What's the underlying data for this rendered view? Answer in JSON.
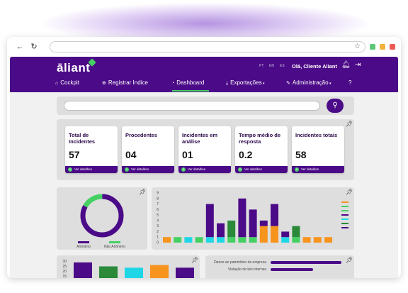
{
  "browser": {
    "url": ""
  },
  "header": {
    "logo": "āliant",
    "languages": [
      "PT",
      "EN",
      "ES"
    ],
    "greeting": "Olá, Cliente Aliant"
  },
  "menu": [
    {
      "label": "Cockpit",
      "icon": "home-icon"
    },
    {
      "label": "Registrar Indice",
      "icon": "plus-circle-icon"
    },
    {
      "label": "Dashboard",
      "icon": "pie-chart-icon",
      "active": true
    },
    {
      "label": "Exportações",
      "icon": "download-icon",
      "dropdown": true
    },
    {
      "label": "Administração",
      "icon": "wrench-icon",
      "dropdown": true
    },
    {
      "label": "",
      "icon": "help-icon"
    }
  ],
  "search": {
    "placeholder": ""
  },
  "kpis": [
    {
      "title": "Total de Incidentes",
      "value": "57",
      "link": "Ver detalhes"
    },
    {
      "title": "Procedentes",
      "value": "04",
      "link": "Ver detalhes"
    },
    {
      "title": "Incidentes em análise",
      "value": "01",
      "link": "Ver detalhes"
    },
    {
      "title": "Tempo médio de resposta",
      "value": "0.2",
      "link": "Ver detalhes"
    },
    {
      "title": "Incidentes totais",
      "value": "58",
      "link": "Ver detalhes"
    }
  ],
  "colors": {
    "purple": "#4b0a87",
    "green": "#45d063",
    "orange": "#f7941d",
    "cyan": "#1fd6e6",
    "darkgreen": "#2a8a3a",
    "bar_purple": "#4b0a87"
  },
  "chart_data": [
    {
      "type": "pie",
      "title": "",
      "labels": [
        "Anônimo",
        "Não Anônimo"
      ],
      "values": [
        83,
        17
      ],
      "colors": [
        "#4b0a87",
        "#45d063"
      ]
    },
    {
      "type": "bar",
      "title": "",
      "ylim": [
        0,
        9
      ],
      "categories": [
        "",
        "",
        "",
        "",
        "",
        "",
        "",
        "",
        "",
        "",
        "",
        "",
        "",
        "",
        "",
        ""
      ],
      "series": [
        {
          "values": [
            0,
            1,
            1,
            1,
            7,
            3.5,
            4,
            8,
            6,
            4,
            7,
            2,
            3,
            1,
            1,
            1
          ]
        }
      ],
      "stack_bottom": [
        1,
        1,
        1,
        1,
        1,
        1,
        1,
        1,
        1,
        3,
        3,
        1,
        1,
        1,
        1,
        1
      ],
      "bottom_colors": [
        "#f7941d",
        "#45d063",
        "#1fd6e6",
        "#45d063",
        "#1fd6e6",
        "#1fd6e6",
        "#45d063",
        "#45d063",
        "#45d063",
        "#f7941d",
        "#f7941d",
        "#1fd6e6",
        "#45d063",
        "#f7941d",
        "#f7941d",
        "#f7941d"
      ],
      "top_colors": [
        "#4b0a87",
        "#4b0a87",
        "#4b0a87",
        "#4b0a87",
        "#4b0a87",
        "#4b0a87",
        "#2a8a3a",
        "#4b0a87",
        "#4b0a87",
        "#4b0a87",
        "#4b0a87",
        "#4b0a87",
        "#2a8a3a",
        "#4b0a87",
        "#4b0a87",
        "#4b0a87"
      ]
    },
    {
      "type": "bar",
      "title": "",
      "y_ticks": [
        "30",
        "25",
        "20",
        "15"
      ],
      "values": [
        28,
        22,
        20,
        24,
        20
      ],
      "colors": [
        "#4b0a87",
        "#2a8a3a",
        "#1fd6e6",
        "#f7941d",
        "#4b0a87"
      ]
    },
    {
      "type": "bar",
      "title": "",
      "categories": [
        "Danos ao patrimônio da empresa",
        "Violação de leis internas"
      ],
      "values": [
        100,
        60
      ],
      "colors": [
        "#4b0a87",
        "#4b0a87"
      ]
    }
  ]
}
